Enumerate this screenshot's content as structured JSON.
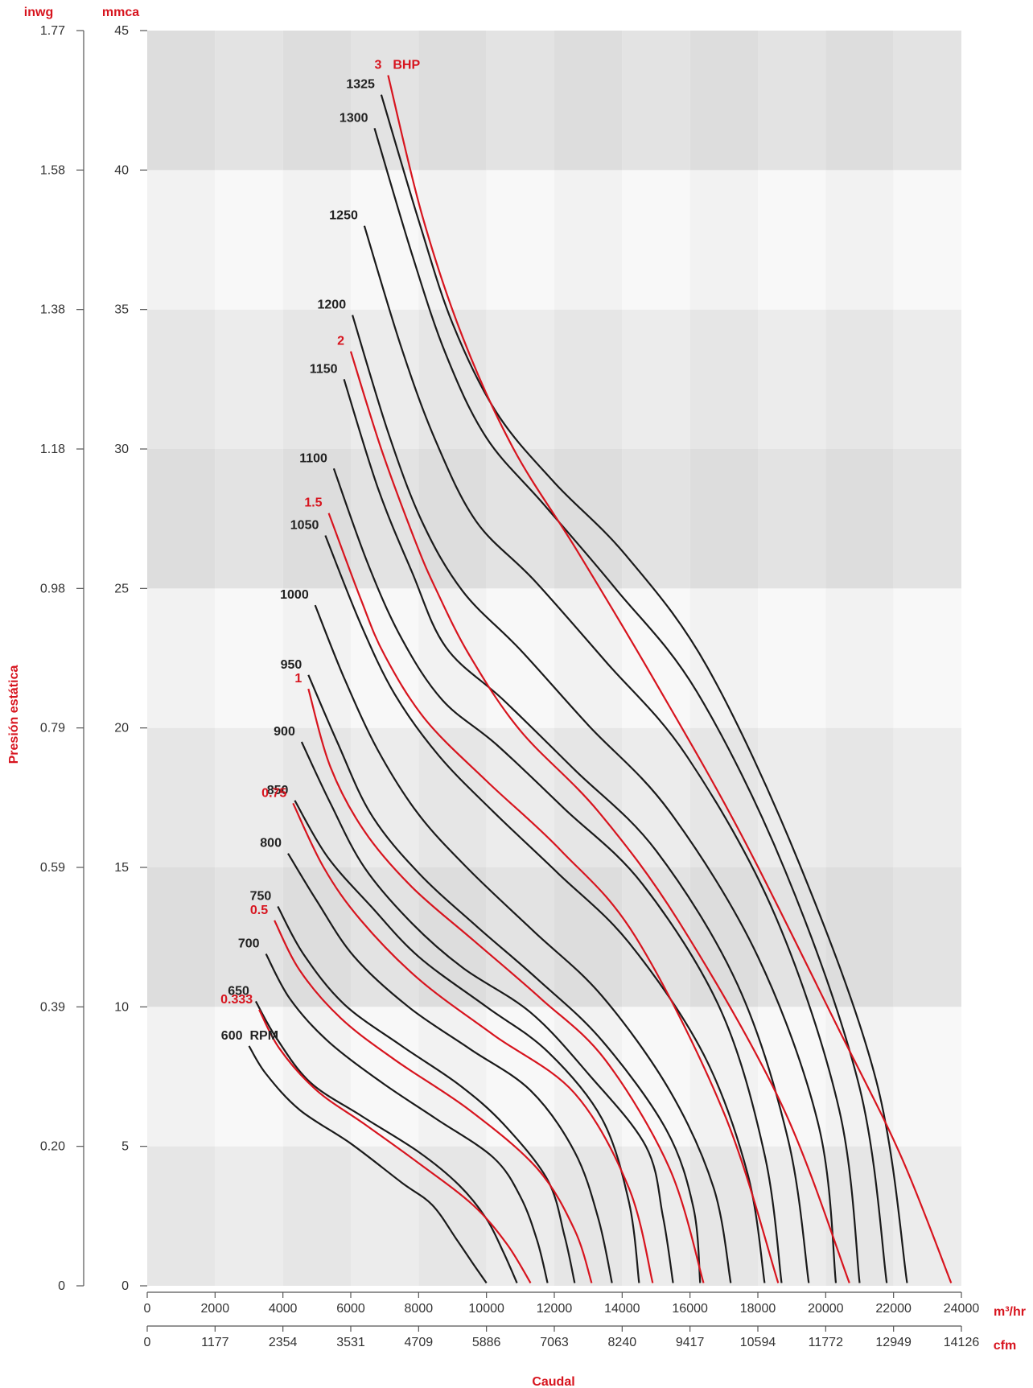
{
  "chart_data": {
    "type": "line",
    "title": "",
    "xlabel": "Caudal",
    "ylabel": "Presión estática",
    "x_unit_primary": "m³/hr",
    "x_unit_secondary": "cfm",
    "y_unit_primary": "mmca",
    "y_unit_secondary": "inwg",
    "xlim": [
      0,
      24000
    ],
    "ylim": [
      0,
      45
    ],
    "grid": "alternating bands",
    "x_ticks_primary": [
      "0",
      "2000",
      "4000",
      "6000",
      "8000",
      "10000",
      "12000",
      "14000",
      "16000",
      "18000",
      "20000",
      "22000",
      "24000"
    ],
    "x_ticks_secondary": [
      "0",
      "1177",
      "2354",
      "3531",
      "4709",
      "5886",
      "7063",
      "8240",
      "9417",
      "10594",
      "11772",
      "12949",
      "14126"
    ],
    "y_ticks_primary": [
      "0",
      "5",
      "10",
      "15",
      "20",
      "25",
      "30",
      "35",
      "40",
      "45"
    ],
    "y_ticks_secondary": [
      "0",
      "0.20",
      "0.39",
      "0.59",
      "0.79",
      "0.98",
      "1.18",
      "1.38",
      "1.58",
      "1.77"
    ],
    "rpm_unit": "RPM",
    "bhp_unit": "BHP",
    "colors": {
      "rpm": "#1a1a1a",
      "bhp": "#d7141e"
    },
    "rpm_series": [
      {
        "name": "600",
        "x": [
          3000,
          3500,
          4500,
          6000,
          7500,
          8400,
          9100,
          9600,
          10000
        ],
        "y": [
          8.6,
          7.6,
          6.3,
          5.1,
          3.7,
          2.9,
          1.7,
          0.8,
          0.1
        ]
      },
      {
        "name": "650",
        "x": [
          3200,
          3800,
          4800,
          6300,
          8000,
          9200,
          10000,
          10500,
          10900
        ],
        "y": [
          10.2,
          8.9,
          7.3,
          6.1,
          4.8,
          3.6,
          2.4,
          1.2,
          0.1
        ]
      },
      {
        "name": "700",
        "x": [
          3500,
          4200,
          5300,
          6900,
          8500,
          10200,
          11000,
          11500,
          11800
        ],
        "y": [
          11.9,
          10.3,
          8.8,
          7.3,
          6.0,
          4.6,
          3.2,
          1.6,
          0.1
        ]
      },
      {
        "name": "750",
        "x": [
          3850,
          4600,
          5800,
          7500,
          9200,
          10500,
          11800,
          12300,
          12600
        ],
        "y": [
          13.6,
          11.9,
          10.1,
          8.6,
          7.2,
          5.8,
          3.8,
          1.8,
          0.1
        ]
      },
      {
        "name": "800",
        "x": [
          4150,
          5000,
          6100,
          7700,
          9500,
          11300,
          12600,
          13300,
          13700
        ],
        "y": [
          15.5,
          13.8,
          11.8,
          10.0,
          8.5,
          7.0,
          4.8,
          2.4,
          0.1
        ]
      },
      {
        "name": "850",
        "x": [
          4350,
          5300,
          6600,
          8000,
          10000,
          11800,
          13400,
          14200,
          14500
        ],
        "y": [
          17.4,
          15.4,
          13.6,
          11.8,
          10.0,
          8.4,
          6.0,
          3.0,
          0.1
        ]
      },
      {
        "name": "900",
        "x": [
          4550,
          5400,
          6400,
          7800,
          9300,
          11300,
          13000,
          14700,
          15200,
          15500
        ],
        "y": [
          19.5,
          17.3,
          15.0,
          13.0,
          11.4,
          9.8,
          7.6,
          5.0,
          2.5,
          0.1
        ]
      },
      {
        "name": "950",
        "x": [
          4750,
          5600,
          6600,
          8000,
          9700,
          11500,
          13400,
          15300,
          16100,
          16300
        ],
        "y": [
          21.9,
          19.5,
          16.9,
          14.8,
          12.9,
          11.0,
          8.8,
          5.6,
          2.8,
          0.1
        ]
      },
      {
        "name": "1000",
        "x": [
          4950,
          5800,
          6800,
          8000,
          9500,
          11400,
          13400,
          15400,
          16700,
          17200
        ],
        "y": [
          24.4,
          21.8,
          19.2,
          16.9,
          14.9,
          12.7,
          10.4,
          7.0,
          3.5,
          0.1
        ]
      },
      {
        "name": "1050",
        "x": [
          5250,
          6300,
          7300,
          8600,
          10200,
          12100,
          14200,
          16400,
          17700,
          18200
        ],
        "y": [
          26.9,
          23.7,
          21.2,
          19.0,
          17.0,
          14.8,
          12.3,
          8.3,
          4.0,
          0.1
        ]
      },
      {
        "name": "1100",
        "x": [
          5500,
          6500,
          7500,
          8700,
          10300,
          12300,
          14600,
          16900,
          18200,
          18700
        ],
        "y": [
          29.3,
          25.9,
          23.2,
          21.0,
          19.4,
          17.1,
          14.4,
          9.9,
          4.7,
          0.1
        ]
      },
      {
        "name": "1150",
        "x": [
          5800,
          6800,
          7800,
          8800,
          10500,
          12600,
          15000,
          17400,
          18900,
          19500
        ],
        "y": [
          32.5,
          28.6,
          25.6,
          22.9,
          21.0,
          18.5,
          15.6,
          10.8,
          5.2,
          0.1
        ]
      },
      {
        "name": "1200",
        "x": [
          6050,
          7100,
          8100,
          9300,
          11000,
          13000,
          15400,
          18000,
          19800,
          20300
        ],
        "y": [
          34.8,
          30.6,
          27.4,
          24.9,
          22.8,
          20.1,
          17.0,
          11.8,
          5.7,
          0.1
        ]
      },
      {
        "name": "1250",
        "x": [
          6400,
          7500,
          8500,
          9700,
          11400,
          13500,
          15900,
          18500,
          20400,
          21000
        ],
        "y": [
          38.0,
          33.6,
          30.3,
          27.4,
          25.3,
          22.4,
          19.0,
          13.3,
          6.3,
          0.1
        ]
      },
      {
        "name": "1300",
        "x": [
          6700,
          7800,
          8800,
          10000,
          11700,
          13800,
          16200,
          18800,
          21000,
          21800
        ],
        "y": [
          41.5,
          37.0,
          33.4,
          30.4,
          28.0,
          25.0,
          21.3,
          14.9,
          7.1,
          0.1
        ]
      },
      {
        "name": "1325",
        "x": [
          6900,
          8000,
          9000,
          10300,
          12000,
          14100,
          16500,
          19200,
          21500,
          22400
        ],
        "y": [
          42.7,
          38.2,
          34.5,
          31.3,
          28.8,
          26.2,
          22.2,
          15.2,
          7.3,
          0.1
        ]
      }
    ],
    "bhp_series": [
      {
        "name": "0.333",
        "x": [
          3300,
          3900,
          5000,
          6400,
          8000,
          9600,
          10600,
          11300
        ],
        "y": [
          9.9,
          8.5,
          7.0,
          5.8,
          4.4,
          2.9,
          1.5,
          0.1
        ]
      },
      {
        "name": "0.5",
        "x": [
          3750,
          4500,
          5700,
          7300,
          9500,
          11500,
          12600,
          13100
        ],
        "y": [
          13.1,
          11.3,
          9.6,
          8.1,
          6.3,
          4.2,
          2.0,
          0.1
        ]
      },
      {
        "name": "0.75",
        "x": [
          4300,
          5200,
          6300,
          8000,
          10200,
          12600,
          14200,
          14900
        ],
        "y": [
          17.3,
          15.0,
          13.1,
          11.0,
          9.0,
          6.9,
          3.5,
          0.1
        ]
      },
      {
        "name": "1",
        "x": [
          4750,
          5400,
          6400,
          7800,
          9600,
          11600,
          13500,
          15400,
          16400
        ],
        "y": [
          21.4,
          18.6,
          16.3,
          14.3,
          12.4,
          10.3,
          8.1,
          4.2,
          0.1
        ]
      },
      {
        "name": "1.5",
        "x": [
          5350,
          6300,
          7000,
          8200,
          10000,
          12200,
          14400,
          17000,
          18600
        ],
        "y": [
          27.7,
          24.6,
          22.6,
          20.3,
          18.1,
          15.6,
          12.5,
          6.2,
          0.1
        ]
      },
      {
        "name": "2",
        "x": [
          6000,
          6900,
          7900,
          8500,
          9500,
          11000,
          13300,
          15700,
          18700,
          20700
        ],
        "y": [
          33.5,
          30.0,
          26.7,
          25.0,
          22.6,
          19.9,
          17.0,
          13.0,
          6.5,
          0.1
        ]
      },
      {
        "name": "3",
        "x": [
          7100,
          8100,
          9300,
          10800,
          12700,
          15000,
          17500,
          20300,
          22200,
          23700
        ],
        "y": [
          43.4,
          38.4,
          34.0,
          30.0,
          26.3,
          21.6,
          16.2,
          9.4,
          4.7,
          0.1
        ]
      }
    ]
  }
}
